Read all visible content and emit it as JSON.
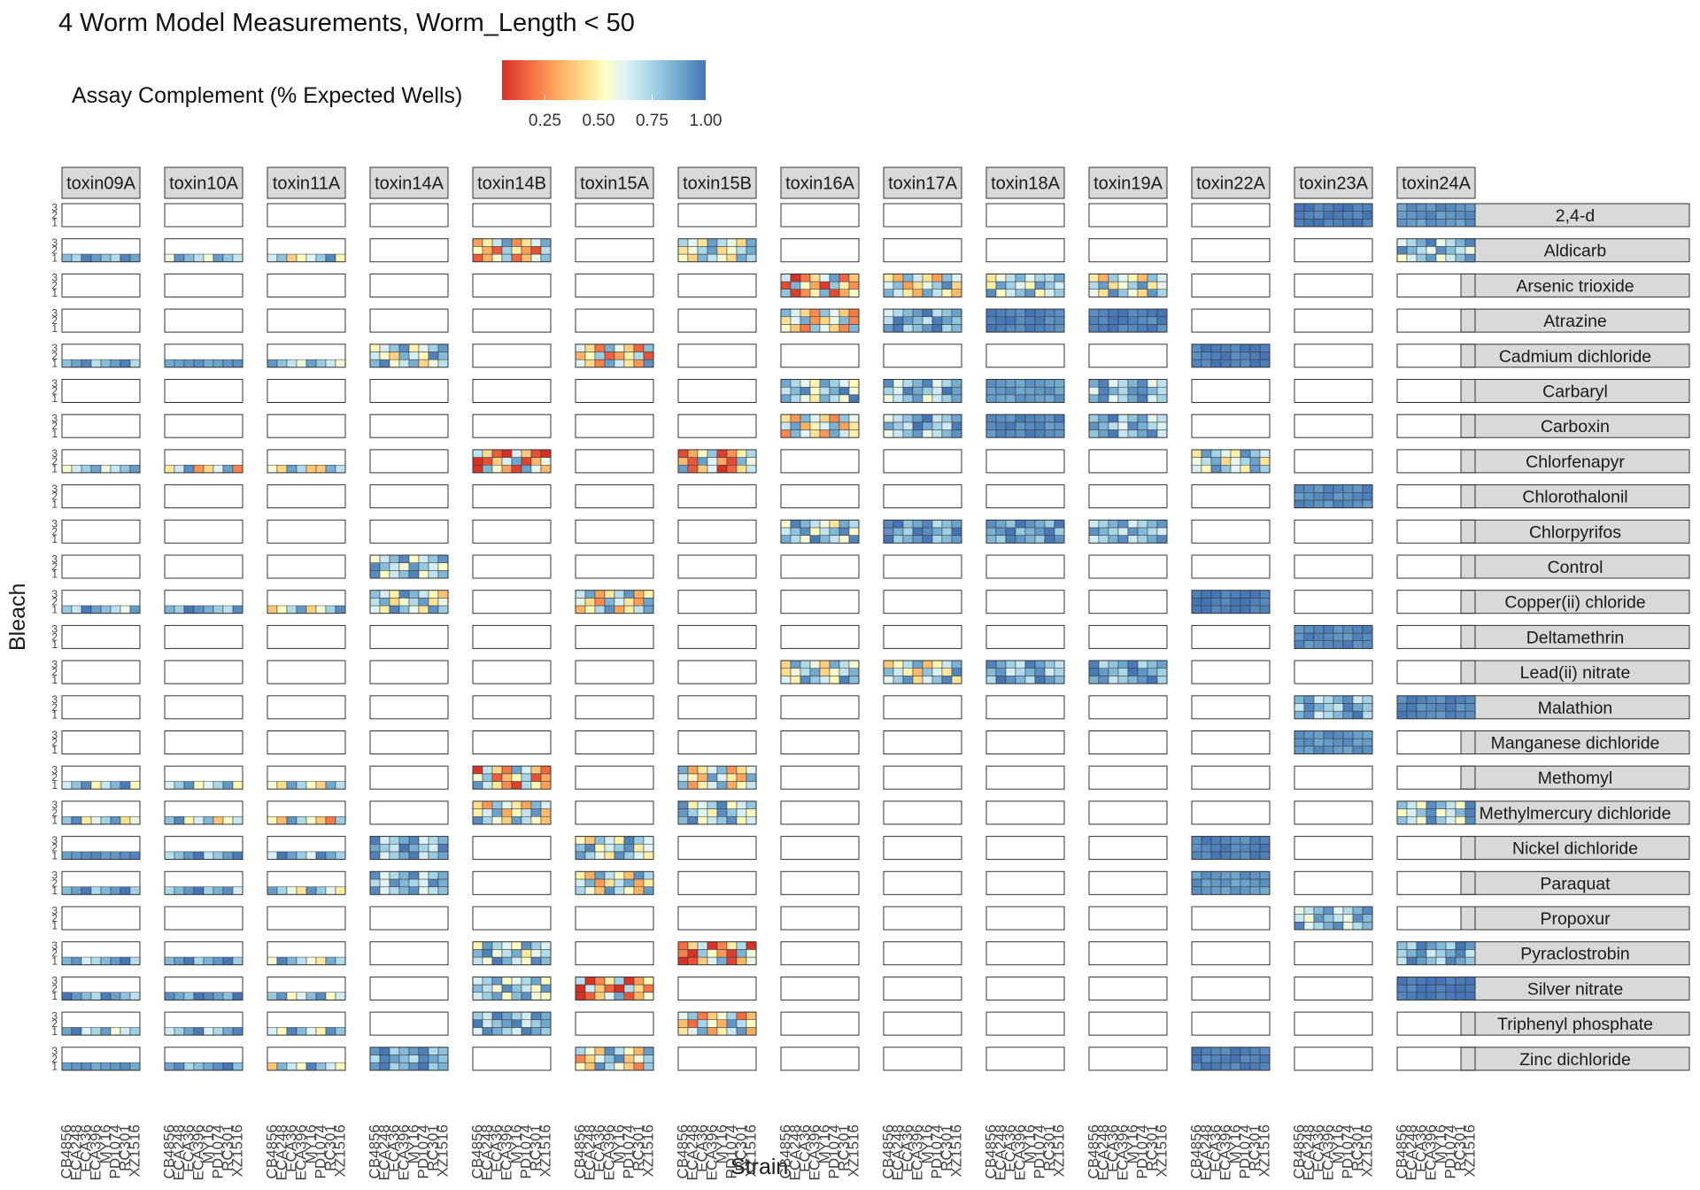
{
  "chart_data": {
    "type": "heatmap",
    "title": "4 Worm Model Measurements, Worm_Length < 50",
    "xlabel": "Strain",
    "ylabel": "Bleach",
    "legend": {
      "title": "Assay Complement (% Expected Wells)",
      "position": "top-left",
      "range": [
        0.05,
        1.0
      ],
      "ticks": [
        "0.25",
        "0.50",
        "0.75",
        "1.00"
      ],
      "tick_values": [
        0.25,
        0.5,
        0.75,
        1.0
      ],
      "colors": {
        "low": "#d73027",
        "mid": "#ffffbf",
        "high": "#4575b4"
      }
    },
    "bleach_levels": [
      "1",
      "2",
      "3"
    ],
    "strains": [
      "CB4856",
      "ECA248",
      "ECA36",
      "ECA396",
      "MY16",
      "PD1074",
      "RC301",
      "XZ1516"
    ],
    "columns": [
      "toxin09A",
      "toxin10A",
      "toxin11A",
      "toxin14A",
      "toxin14B",
      "toxin15A",
      "toxin15B",
      "toxin16A",
      "toxin17A",
      "toxin18A",
      "toxin19A",
      "toxin22A",
      "toxin23A",
      "toxin24A"
    ],
    "rows": [
      "2,4-d",
      "Aldicarb",
      "Arsenic trioxide",
      "Atrazine",
      "Cadmium dichloride",
      "Carbaryl",
      "Carboxin",
      "Chlorfenapyr",
      "Chlorothalonil",
      "Chlorpyrifos",
      "Control",
      "Copper(ii) chloride",
      "Deltamethrin",
      "Lead(ii) nitrate",
      "Malathion",
      "Manganese dichloride",
      "Methomyl",
      "Methylmercury dichloride",
      "Nickel dichloride",
      "Paraquat",
      "Propoxur",
      "Pyraclostrobin",
      "Silver nitrate",
      "Triphenyl phosphate",
      "Zinc dichloride"
    ],
    "cells": [
      {
        "row": "2,4-d",
        "col": "toxin23A",
        "bleach": 3,
        "avg": 0.98
      },
      {
        "row": "2,4-d",
        "col": "toxin24A",
        "bleach": 3,
        "avg": 0.93
      },
      {
        "row": "Aldicarb",
        "col": "toxin09A",
        "bleach": 1,
        "avg": 0.88
      },
      {
        "row": "Aldicarb",
        "col": "toxin10A",
        "bleach": 1,
        "avg": 0.8
      },
      {
        "row": "Aldicarb",
        "col": "toxin11A",
        "bleach": 1,
        "avg": 0.72
      },
      {
        "row": "Aldicarb",
        "col": "toxin14B",
        "bleach": 3,
        "avg": 0.55
      },
      {
        "row": "Aldicarb",
        "col": "toxin15B",
        "bleach": 3,
        "avg": 0.72
      },
      {
        "row": "Aldicarb",
        "col": "toxin24A",
        "bleach": 3,
        "avg": 0.78
      },
      {
        "row": "Arsenic trioxide",
        "col": "toxin16A",
        "bleach": 3,
        "avg": 0.45
      },
      {
        "row": "Arsenic trioxide",
        "col": "toxin17A",
        "bleach": 3,
        "avg": 0.65
      },
      {
        "row": "Arsenic trioxide",
        "col": "toxin18A",
        "bleach": 3,
        "avg": 0.75
      },
      {
        "row": "Arsenic trioxide",
        "col": "toxin19A",
        "bleach": 3,
        "avg": 0.68
      },
      {
        "row": "Atrazine",
        "col": "toxin16A",
        "bleach": 3,
        "avg": 0.6
      },
      {
        "row": "Atrazine",
        "col": "toxin17A",
        "bleach": 3,
        "avg": 0.85
      },
      {
        "row": "Atrazine",
        "col": "toxin18A",
        "bleach": 3,
        "avg": 0.97
      },
      {
        "row": "Atrazine",
        "col": "toxin19A",
        "bleach": 3,
        "avg": 0.97
      },
      {
        "row": "Cadmium dichloride",
        "col": "toxin09A",
        "bleach": 1,
        "avg": 0.88
      },
      {
        "row": "Cadmium dichloride",
        "col": "toxin10A",
        "bleach": 1,
        "avg": 0.92
      },
      {
        "row": "Cadmium dichloride",
        "col": "toxin11A",
        "bleach": 1,
        "avg": 0.8
      },
      {
        "row": "Cadmium dichloride",
        "col": "toxin14A",
        "bleach": 3,
        "avg": 0.72
      },
      {
        "row": "Cadmium dichloride",
        "col": "toxin15A",
        "bleach": 3,
        "avg": 0.55
      },
      {
        "row": "Cadmium dichloride",
        "col": "toxin22A",
        "bleach": 3,
        "avg": 0.97
      },
      {
        "row": "Carbaryl",
        "col": "toxin16A",
        "bleach": 3,
        "avg": 0.75
      },
      {
        "row": "Carbaryl",
        "col": "toxin17A",
        "bleach": 3,
        "avg": 0.8
      },
      {
        "row": "Carbaryl",
        "col": "toxin18A",
        "bleach": 3,
        "avg": 0.92
      },
      {
        "row": "Carbaryl",
        "col": "toxin19A",
        "bleach": 3,
        "avg": 0.8
      },
      {
        "row": "Carboxin",
        "col": "toxin16A",
        "bleach": 3,
        "avg": 0.6
      },
      {
        "row": "Carboxin",
        "col": "toxin17A",
        "bleach": 3,
        "avg": 0.82
      },
      {
        "row": "Carboxin",
        "col": "toxin18A",
        "bleach": 3,
        "avg": 0.95
      },
      {
        "row": "Carboxin",
        "col": "toxin19A",
        "bleach": 3,
        "avg": 0.83
      },
      {
        "row": "Chlorfenapyr",
        "col": "toxin09A",
        "bleach": 1,
        "avg": 0.8
      },
      {
        "row": "Chlorfenapyr",
        "col": "toxin10A",
        "bleach": 1,
        "avg": 0.55
      },
      {
        "row": "Chlorfenapyr",
        "col": "toxin11A",
        "bleach": 1,
        "avg": 0.7
      },
      {
        "row": "Chlorfenapyr",
        "col": "toxin14B",
        "bleach": 3,
        "avg": 0.4
      },
      {
        "row": "Chlorfenapyr",
        "col": "toxin15B",
        "bleach": 3,
        "avg": 0.45
      },
      {
        "row": "Chlorfenapyr",
        "col": "toxin22A",
        "bleach": 3,
        "avg": 0.72
      },
      {
        "row": "Chlorothalonil",
        "col": "toxin23A",
        "bleach": 3,
        "avg": 0.95
      },
      {
        "row": "Chlorpyrifos",
        "col": "toxin16A",
        "bleach": 3,
        "avg": 0.75
      },
      {
        "row": "Chlorpyrifos",
        "col": "toxin17A",
        "bleach": 3,
        "avg": 0.88
      },
      {
        "row": "Chlorpyrifos",
        "col": "toxin18A",
        "bleach": 3,
        "avg": 0.9
      },
      {
        "row": "Chlorpyrifos",
        "col": "toxin19A",
        "bleach": 3,
        "avg": 0.85
      },
      {
        "row": "Control",
        "col": "toxin14A",
        "bleach": 3,
        "avg": 0.75
      },
      {
        "row": "Copper(ii) chloride",
        "col": "toxin09A",
        "bleach": 1,
        "avg": 0.82
      },
      {
        "row": "Copper(ii) chloride",
        "col": "toxin10A",
        "bleach": 1,
        "avg": 0.88
      },
      {
        "row": "Copper(ii) chloride",
        "col": "toxin11A",
        "bleach": 1,
        "avg": 0.65
      },
      {
        "row": "Copper(ii) chloride",
        "col": "toxin14A",
        "bleach": 3,
        "avg": 0.7
      },
      {
        "row": "Copper(ii) chloride",
        "col": "toxin15A",
        "bleach": 3,
        "avg": 0.6
      },
      {
        "row": "Copper(ii) chloride",
        "col": "toxin22A",
        "bleach": 3,
        "avg": 0.98
      },
      {
        "row": "Deltamethrin",
        "col": "toxin23A",
        "bleach": 3,
        "avg": 0.95
      },
      {
        "row": "Lead(ii) nitrate",
        "col": "toxin16A",
        "bleach": 3,
        "avg": 0.7
      },
      {
        "row": "Lead(ii) nitrate",
        "col": "toxin17A",
        "bleach": 3,
        "avg": 0.68
      },
      {
        "row": "Lead(ii) nitrate",
        "col": "toxin18A",
        "bleach": 3,
        "avg": 0.85
      },
      {
        "row": "Lead(ii) nitrate",
        "col": "toxin19A",
        "bleach": 3,
        "avg": 0.87
      },
      {
        "row": "Malathion",
        "col": "toxin23A",
        "bleach": 3,
        "avg": 0.85
      },
      {
        "row": "Malathion",
        "col": "toxin24A",
        "bleach": 3,
        "avg": 0.96
      },
      {
        "row": "Manganese dichloride",
        "col": "toxin23A",
        "bleach": 3,
        "avg": 0.93
      },
      {
        "row": "Methomyl",
        "col": "toxin09A",
        "bleach": 1,
        "avg": 0.72
      },
      {
        "row": "Methomyl",
        "col": "toxin10A",
        "bleach": 1,
        "avg": 0.75
      },
      {
        "row": "Methomyl",
        "col": "toxin11A",
        "bleach": 1,
        "avg": 0.7
      },
      {
        "row": "Methomyl",
        "col": "toxin14B",
        "bleach": 3,
        "avg": 0.5
      },
      {
        "row": "Methomyl",
        "col": "toxin15B",
        "bleach": 3,
        "avg": 0.62
      },
      {
        "row": "Methylmercury dichloride",
        "col": "toxin09A",
        "bleach": 1,
        "avg": 0.7
      },
      {
        "row": "Methylmercury dichloride",
        "col": "toxin10A",
        "bleach": 1,
        "avg": 0.7
      },
      {
        "row": "Methylmercury dichloride",
        "col": "toxin11A",
        "bleach": 1,
        "avg": 0.62
      },
      {
        "row": "Methylmercury dichloride",
        "col": "toxin14B",
        "bleach": 3,
        "avg": 0.62
      },
      {
        "row": "Methylmercury dichloride",
        "col": "toxin15B",
        "bleach": 3,
        "avg": 0.72
      },
      {
        "row": "Methylmercury dichloride",
        "col": "toxin24A",
        "bleach": 3,
        "avg": 0.75
      },
      {
        "row": "Nickel dichloride",
        "col": "toxin09A",
        "bleach": 1,
        "avg": 0.93
      },
      {
        "row": "Nickel dichloride",
        "col": "toxin10A",
        "bleach": 1,
        "avg": 0.85
      },
      {
        "row": "Nickel dichloride",
        "col": "toxin11A",
        "bleach": 1,
        "avg": 0.8
      },
      {
        "row": "Nickel dichloride",
        "col": "toxin14A",
        "bleach": 3,
        "avg": 0.82
      },
      {
        "row": "Nickel dichloride",
        "col": "toxin15A",
        "bleach": 3,
        "avg": 0.7
      },
      {
        "row": "Nickel dichloride",
        "col": "toxin22A",
        "bleach": 3,
        "avg": 0.96
      },
      {
        "row": "Paraquat",
        "col": "toxin09A",
        "bleach": 1,
        "avg": 0.88
      },
      {
        "row": "Paraquat",
        "col": "toxin10A",
        "bleach": 1,
        "avg": 0.85
      },
      {
        "row": "Paraquat",
        "col": "toxin11A",
        "bleach": 1,
        "avg": 0.72
      },
      {
        "row": "Paraquat",
        "col": "toxin14A",
        "bleach": 3,
        "avg": 0.82
      },
      {
        "row": "Paraquat",
        "col": "toxin15A",
        "bleach": 3,
        "avg": 0.62
      },
      {
        "row": "Paraquat",
        "col": "toxin22A",
        "bleach": 3,
        "avg": 0.92
      },
      {
        "row": "Propoxur",
        "col": "toxin23A",
        "bleach": 3,
        "avg": 0.8
      },
      {
        "row": "Pyraclostrobin",
        "col": "toxin09A",
        "bleach": 1,
        "avg": 0.85
      },
      {
        "row": "Pyraclostrobin",
        "col": "toxin10A",
        "bleach": 1,
        "avg": 0.88
      },
      {
        "row": "Pyraclostrobin",
        "col": "toxin11A",
        "bleach": 1,
        "avg": 0.75
      },
      {
        "row": "Pyraclostrobin",
        "col": "toxin14B",
        "bleach": 3,
        "avg": 0.75
      },
      {
        "row": "Pyraclostrobin",
        "col": "toxin15B",
        "bleach": 3,
        "avg": 0.42
      },
      {
        "row": "Pyraclostrobin",
        "col": "toxin24A",
        "bleach": 3,
        "avg": 0.85
      },
      {
        "row": "Silver nitrate",
        "col": "toxin09A",
        "bleach": 1,
        "avg": 0.85
      },
      {
        "row": "Silver nitrate",
        "col": "toxin10A",
        "bleach": 1,
        "avg": 0.9
      },
      {
        "row": "Silver nitrate",
        "col": "toxin11A",
        "bleach": 1,
        "avg": 0.75
      },
      {
        "row": "Silver nitrate",
        "col": "toxin14B",
        "bleach": 3,
        "avg": 0.78
      },
      {
        "row": "Silver nitrate",
        "col": "toxin15A",
        "bleach": 3,
        "avg": 0.45
      },
      {
        "row": "Silver nitrate",
        "col": "toxin24A",
        "bleach": 3,
        "avg": 0.99
      },
      {
        "row": "Triphenyl phosphate",
        "col": "toxin09A",
        "bleach": 1,
        "avg": 0.8
      },
      {
        "row": "Triphenyl phosphate",
        "col": "toxin10A",
        "bleach": 1,
        "avg": 0.82
      },
      {
        "row": "Triphenyl phosphate",
        "col": "toxin11A",
        "bleach": 1,
        "avg": 0.72
      },
      {
        "row": "Triphenyl phosphate",
        "col": "toxin14B",
        "bleach": 3,
        "avg": 0.82
      },
      {
        "row": "Triphenyl phosphate",
        "col": "toxin15B",
        "bleach": 3,
        "avg": 0.6
      },
      {
        "row": "Zinc dichloride",
        "col": "toxin09A",
        "bleach": 1,
        "avg": 0.92
      },
      {
        "row": "Zinc dichloride",
        "col": "toxin10A",
        "bleach": 1,
        "avg": 0.9
      },
      {
        "row": "Zinc dichloride",
        "col": "toxin11A",
        "bleach": 1,
        "avg": 0.7
      },
      {
        "row": "Zinc dichloride",
        "col": "toxin14A",
        "bleach": 3,
        "avg": 0.88
      },
      {
        "row": "Zinc dichloride",
        "col": "toxin15A",
        "bleach": 3,
        "avg": 0.62
      },
      {
        "row": "Zinc dichloride",
        "col": "toxin22A",
        "bleach": 3,
        "avg": 0.97
      }
    ]
  }
}
